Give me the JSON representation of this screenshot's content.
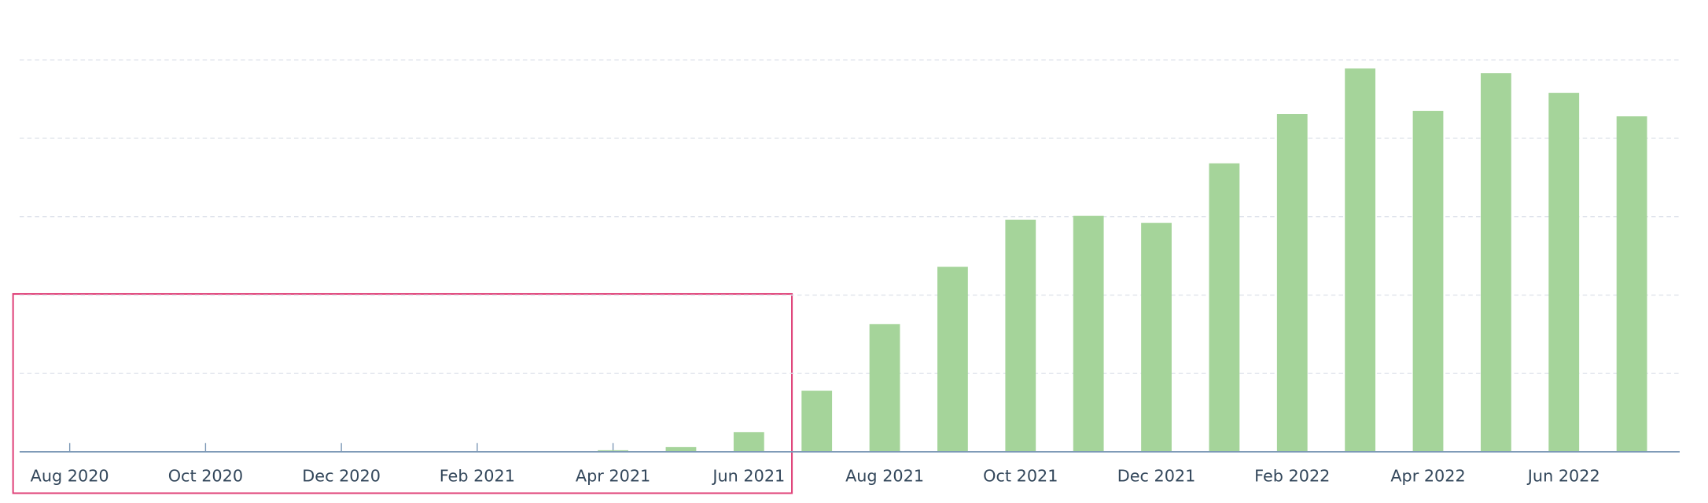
{
  "chart_data": {
    "type": "bar",
    "categories": [
      "Aug 2020",
      null,
      "Oct 2020",
      null,
      "Dec 2020",
      null,
      "Feb 2021",
      null,
      "Apr 2021",
      null,
      "Jun 2021",
      null,
      "Aug 2021",
      null,
      "Oct 2021",
      null,
      "Dec 2021",
      null,
      "Feb 2022",
      null,
      "Apr 2022",
      null,
      "Jun 2022",
      null
    ],
    "values": [
      0,
      0,
      0,
      0,
      0,
      0,
      0,
      0,
      0.02,
      0.06,
      0.25,
      0.78,
      1.63,
      2.36,
      2.96,
      3.01,
      2.92,
      3.68,
      4.31,
      4.89,
      4.35,
      4.83,
      4.58,
      4.28
    ],
    "color": "#a5d49a",
    "ylim": [
      0,
      5
    ],
    "yticks": [
      0,
      1,
      2,
      3,
      4,
      5
    ],
    "grid": true
  }
}
